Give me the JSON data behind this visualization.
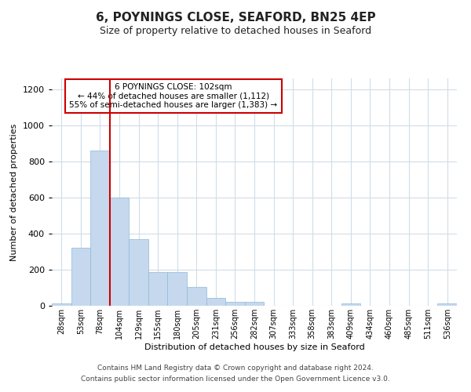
{
  "title": "6, POYNINGS CLOSE, SEAFORD, BN25 4EP",
  "subtitle": "Size of property relative to detached houses in Seaford",
  "xlabel": "Distribution of detached houses by size in Seaford",
  "ylabel": "Number of detached properties",
  "bar_labels": [
    "28sqm",
    "53sqm",
    "78sqm",
    "104sqm",
    "129sqm",
    "155sqm",
    "180sqm",
    "205sqm",
    "231sqm",
    "256sqm",
    "282sqm",
    "307sqm",
    "333sqm",
    "358sqm",
    "383sqm",
    "409sqm",
    "434sqm",
    "460sqm",
    "485sqm",
    "511sqm",
    "536sqm"
  ],
  "bar_heights": [
    12,
    320,
    860,
    600,
    370,
    185,
    185,
    105,
    45,
    20,
    20,
    2,
    0,
    0,
    0,
    12,
    0,
    0,
    0,
    0,
    12
  ],
  "bar_color": "#c5d8ee",
  "bar_edge_color": "#8fb8d8",
  "vline_bar_index": 3,
  "vline_color": "#cc0000",
  "ylim": [
    0,
    1260
  ],
  "yticks": [
    0,
    200,
    400,
    600,
    800,
    1000,
    1200
  ],
  "annotation_title": "6 POYNINGS CLOSE: 102sqm",
  "annotation_line1": "← 44% of detached houses are smaller (1,112)",
  "annotation_line2": "55% of semi-detached houses are larger (1,383) →",
  "annotation_box_color": "#ffffff",
  "annotation_box_edge": "#cc0000",
  "footer_line1": "Contains HM Land Registry data © Crown copyright and database right 2024.",
  "footer_line2": "Contains public sector information licensed under the Open Government Licence v3.0.",
  "background_color": "#ffffff",
  "grid_color": "#d0dde8"
}
